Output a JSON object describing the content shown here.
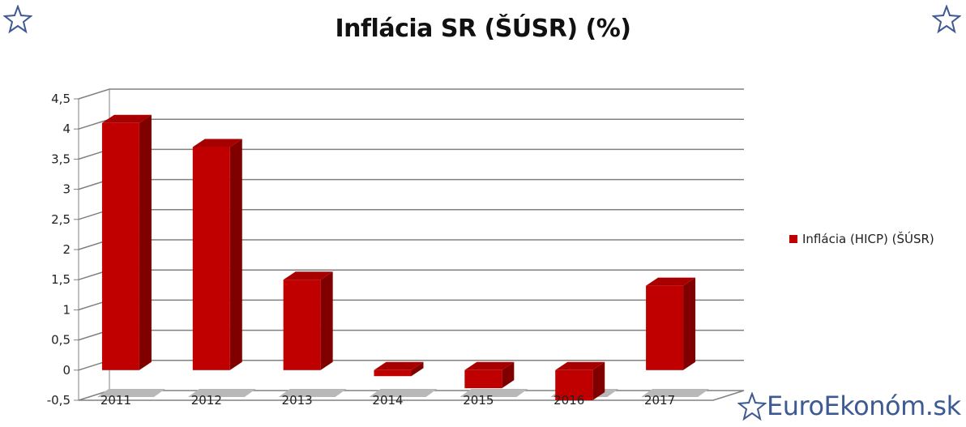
{
  "title": "Inflácia SR (ŠÚSR) (%)",
  "brand": {
    "text": "EuroEkonóm.sk",
    "color": "#3e5a92",
    "icon": "star-outline-icon"
  },
  "colors": {
    "bar_front": "#c00000",
    "bar_side": "#800000",
    "bar_top": "#a80000",
    "grid": "#808080"
  },
  "chart_data": {
    "type": "bar",
    "title": "Inflácia SR (ŠÚSR) (%)",
    "categories": [
      "2011",
      "2012",
      "2013",
      "2014",
      "2015",
      "2016",
      "2017"
    ],
    "series": [
      {
        "name": "Inflácia (HICP) (ŠÚSR)",
        "values": [
          4.1,
          3.7,
          1.5,
          -0.1,
          -0.3,
          -0.5,
          1.4
        ]
      }
    ],
    "ylim": [
      -0.5,
      4.5
    ],
    "yticks": [
      "-0,5",
      "0",
      "0,5",
      "1",
      "1,5",
      "2",
      "2,5",
      "3",
      "3,5",
      "4",
      "4,5"
    ],
    "grid": true,
    "legend_position": "right",
    "style": "3d-column"
  }
}
